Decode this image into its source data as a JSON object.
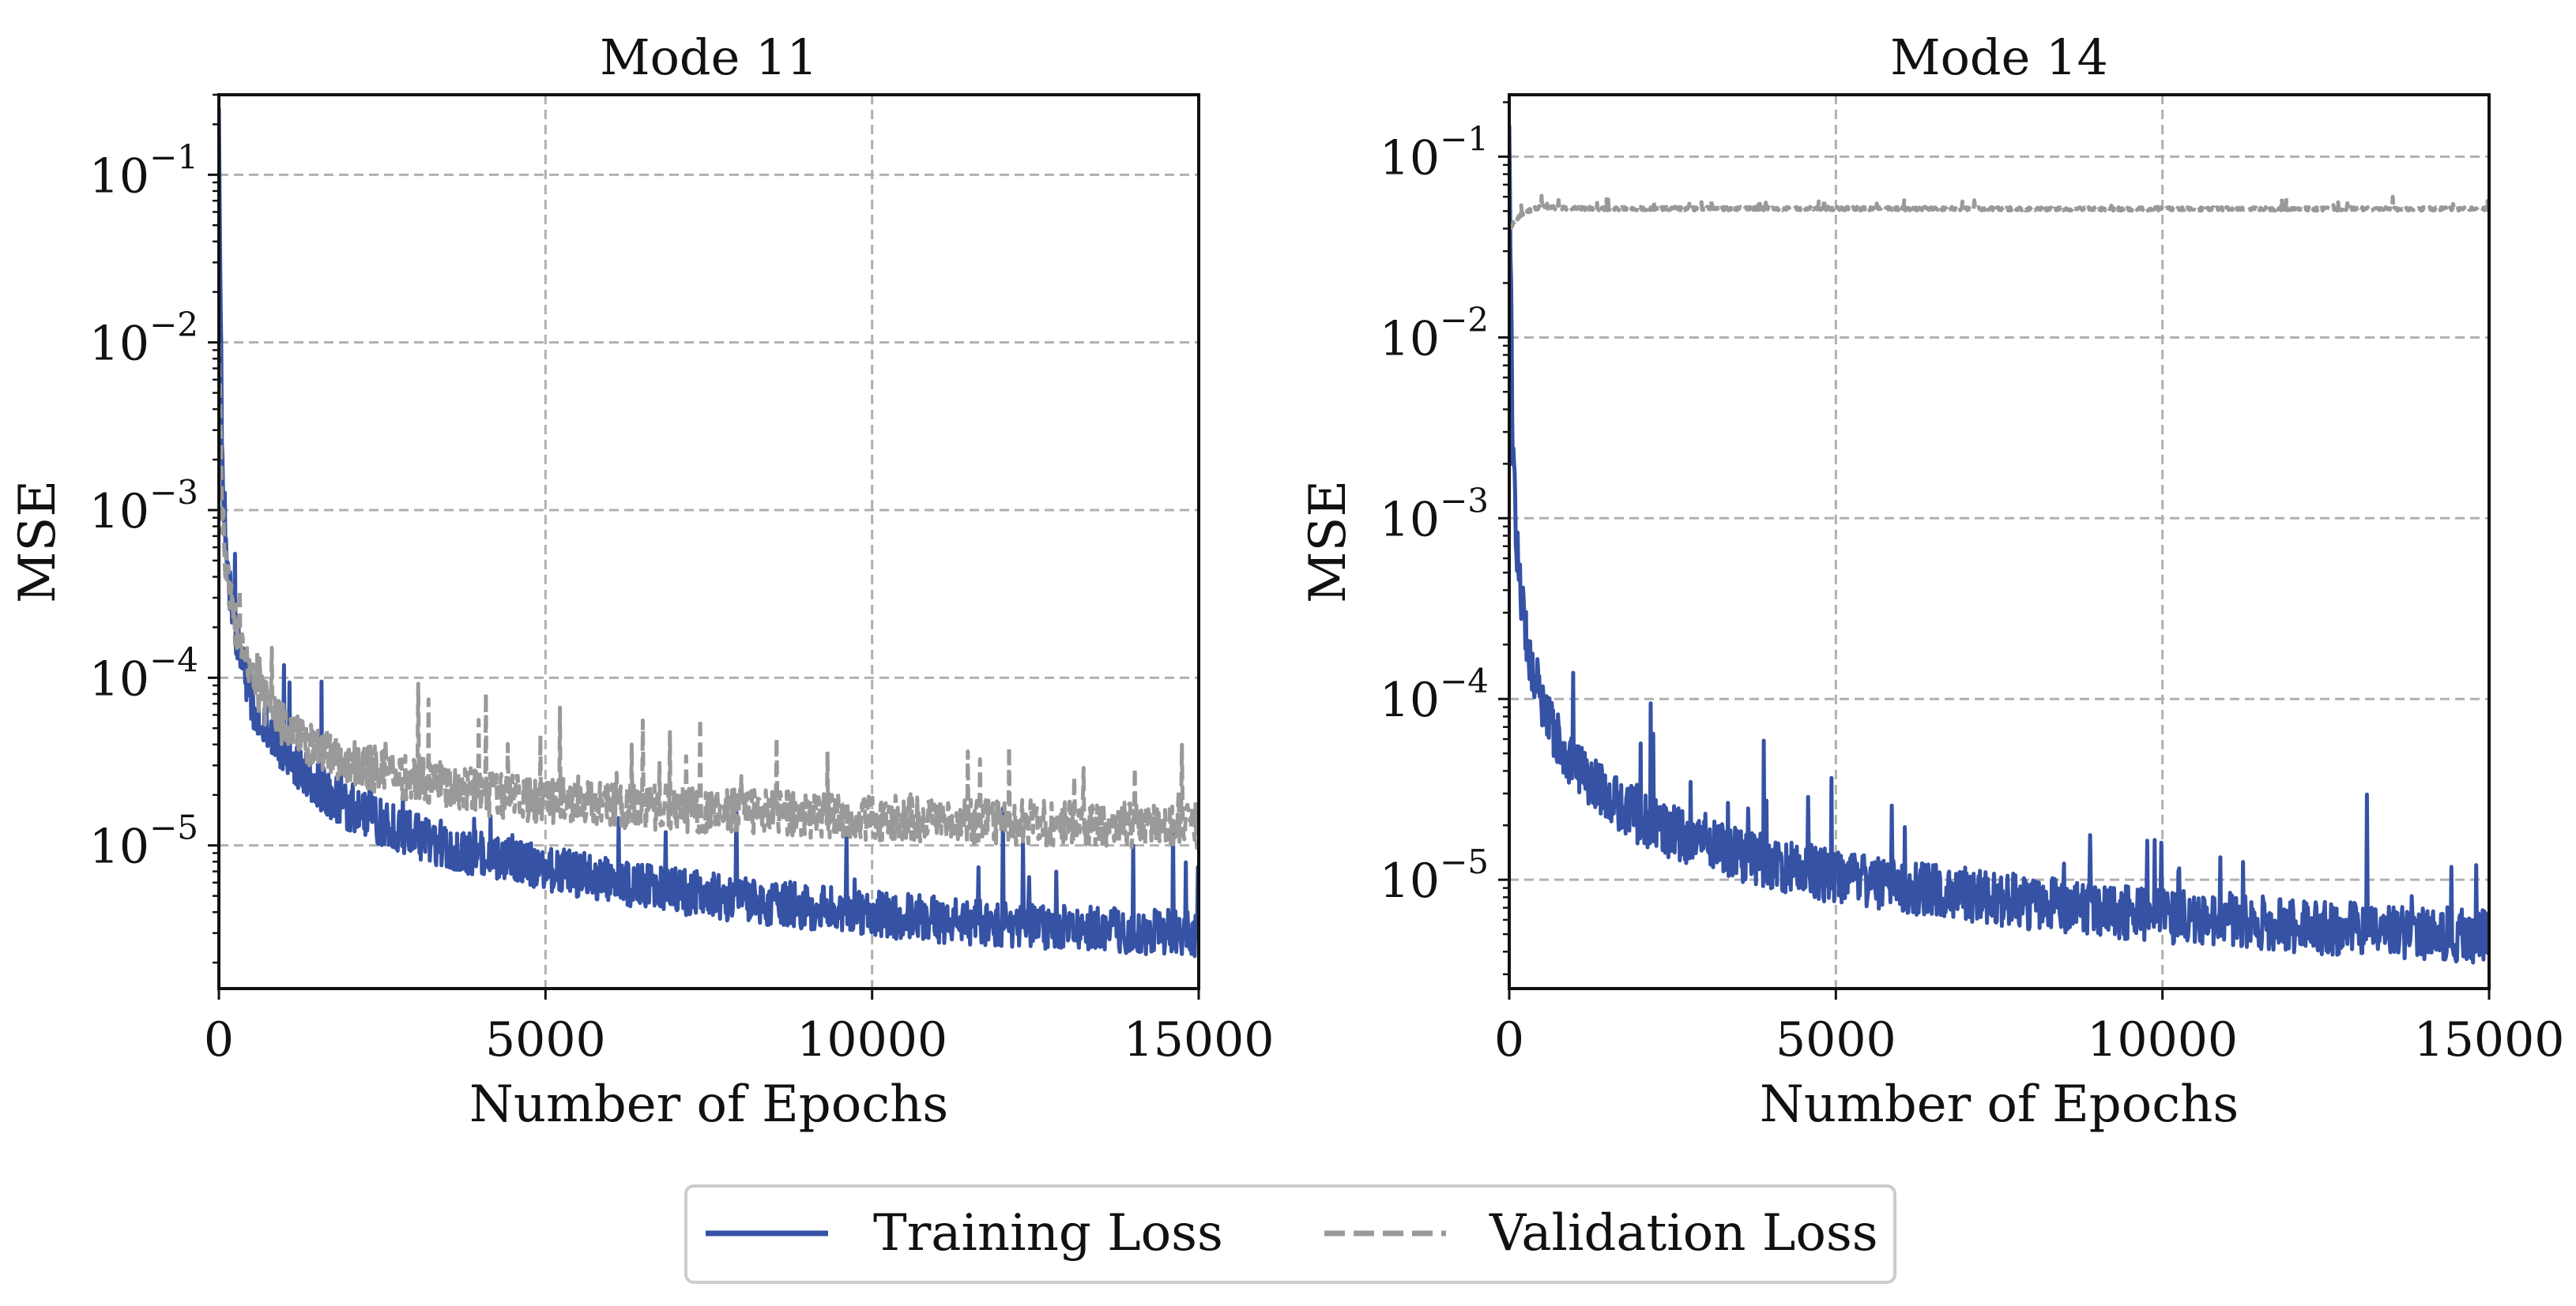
{
  "legend": {
    "training": "Training Loss",
    "validation": "Validation Loss"
  },
  "colors": {
    "training": "#3552a5",
    "validation": "#999999",
    "grid": "#b0b0b0",
    "axis": "#111111"
  },
  "chart_data": [
    {
      "type": "line",
      "title": "Mode 11",
      "xlabel": "Number of Epochs",
      "ylabel": "MSE",
      "yscale": "log",
      "xlim": [
        0,
        15000
      ],
      "ylim": [
        1.4e-06,
        0.3
      ],
      "xticks": [
        0,
        5000,
        10000,
        15000
      ],
      "xtick_labels": [
        "0",
        "5000",
        "10000",
        "15000"
      ],
      "yticks": [
        0.1,
        0.01,
        0.001,
        0.0001,
        1e-05
      ],
      "ytick_labels": [
        {
          "base": "10",
          "exp": "−1"
        },
        {
          "base": "10",
          "exp": "−2"
        },
        {
          "base": "10",
          "exp": "−3"
        },
        {
          "base": "10",
          "exp": "−4"
        },
        {
          "base": "10",
          "exp": "−5"
        }
      ],
      "grid": true,
      "series": [
        {
          "name": "Training Loss",
          "style": "solid",
          "x": [
            0,
            50,
            100,
            200,
            300,
            500,
            700,
            1000,
            1500,
            2000,
            3000,
            4000,
            5000,
            6000,
            7000,
            8000,
            9000,
            10000,
            11000,
            12000,
            13000,
            14000,
            15000
          ],
          "y": [
            0.25,
            0.002,
            0.0006,
            0.00025,
            0.00015,
            7e-05,
            5e-05,
            3.5e-05,
            2.2e-05,
            1.6e-05,
            1.1e-05,
            8.5e-06,
            7e-06,
            6e-06,
            5.2e-06,
            4.6e-06,
            4.2e-06,
            3.8e-06,
            3.5e-06,
            3.3e-06,
            3.1e-06,
            3e-06,
            2.9e-06
          ],
          "noise_band": 0.55,
          "spike_amp": 3.5
        },
        {
          "name": "Validation Loss",
          "style": "dashed",
          "x": [
            0,
            50,
            100,
            200,
            300,
            500,
            700,
            1000,
            1500,
            2000,
            3000,
            4000,
            5000,
            6000,
            7000,
            8000,
            9000,
            10000,
            11000,
            12000,
            13000,
            14000,
            15000
          ],
          "y": [
            0.01,
            0.001,
            0.0005,
            0.00025,
            0.00017,
            9e-05,
            7e-05,
            5e-05,
            3.7e-05,
            3e-05,
            2.4e-05,
            2e-05,
            1.8e-05,
            1.7e-05,
            1.6e-05,
            1.55e-05,
            1.48e-05,
            1.42e-05,
            1.38e-05,
            1.34e-05,
            1.3e-05,
            1.28e-05,
            1.26e-05
          ],
          "noise_band": 0.55,
          "spike_amp": 2.5
        }
      ]
    },
    {
      "type": "line",
      "title": "Mode 14",
      "xlabel": "Number of Epochs",
      "ylabel": "MSE",
      "yscale": "log",
      "xlim": [
        0,
        15000
      ],
      "ylim": [
        2.5e-06,
        0.22
      ],
      "xticks": [
        0,
        5000,
        10000,
        15000
      ],
      "xtick_labels": [
        "0",
        "5000",
        "10000",
        "15000"
      ],
      "yticks": [
        0.1,
        0.01,
        0.001,
        0.0001,
        1e-05
      ],
      "ytick_labels": [
        {
          "base": "10",
          "exp": "−1"
        },
        {
          "base": "10",
          "exp": "−2"
        },
        {
          "base": "10",
          "exp": "−3"
        },
        {
          "base": "10",
          "exp": "−4"
        },
        {
          "base": "10",
          "exp": "−5"
        }
      ],
      "grid": true,
      "series": [
        {
          "name": "Training Loss",
          "style": "solid",
          "x": [
            0,
            50,
            100,
            200,
            300,
            500,
            700,
            1000,
            1500,
            2000,
            3000,
            4000,
            5000,
            6000,
            7000,
            8000,
            9000,
            10000,
            11000,
            12000,
            13000,
            14000,
            15000
          ],
          "y": [
            0.15,
            0.003,
            0.0008,
            0.0003,
            0.00018,
            9e-05,
            6e-05,
            4.2e-05,
            2.8e-05,
            2.1e-05,
            1.5e-05,
            1.2e-05,
            1e-05,
            8.8e-06,
            8e-06,
            7.2e-06,
            6.6e-06,
            6.1e-06,
            5.7e-06,
            5.4e-06,
            5.1e-06,
            4.9e-06,
            4.7e-06
          ],
          "noise_band": 0.6,
          "spike_amp": 3.5
        },
        {
          "name": "Validation Loss",
          "style": "dashed",
          "x": [
            0,
            50,
            100,
            200,
            300,
            500,
            700,
            1000,
            2000,
            5000,
            10000,
            15000
          ],
          "y": [
            0.04,
            0.042,
            0.045,
            0.048,
            0.05,
            0.053,
            0.052,
            0.0515,
            0.0515,
            0.0515,
            0.0513,
            0.0513
          ],
          "noise_band": 0.04,
          "spike_amp": 0.15
        }
      ]
    }
  ]
}
